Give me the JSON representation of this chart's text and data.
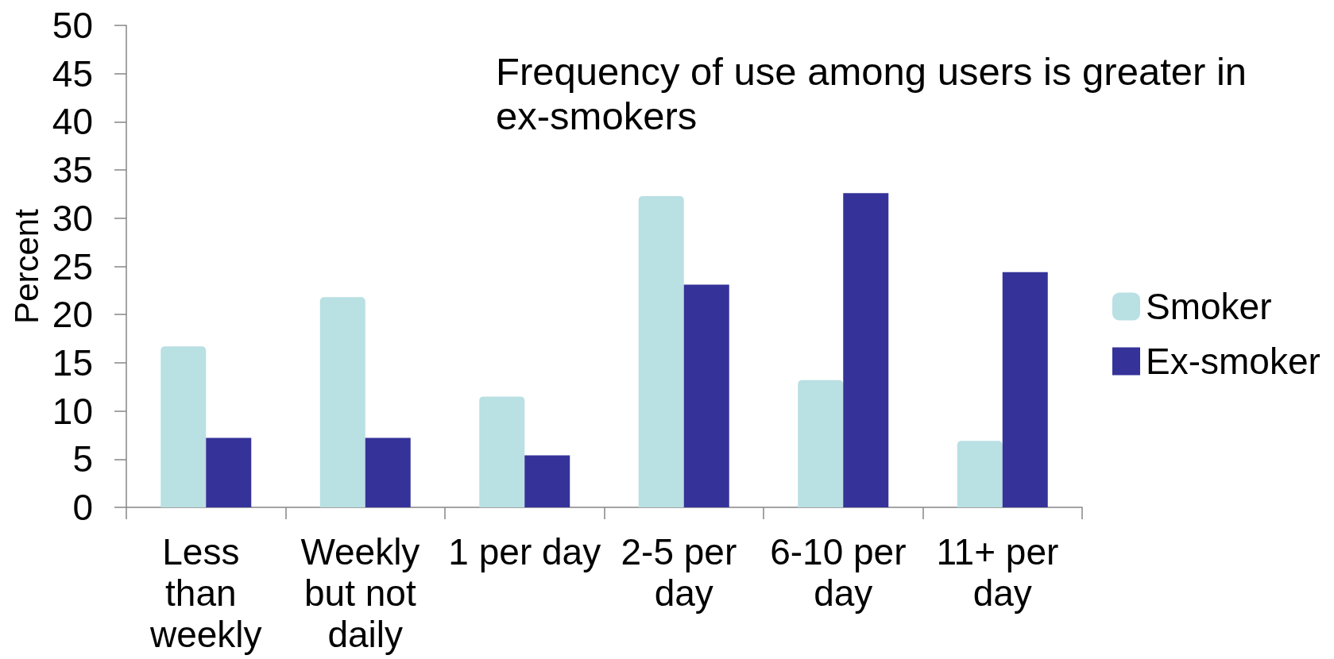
{
  "chart_data": {
    "type": "bar",
    "title": "Frequency of use among users is greater in ex-smokers",
    "ylabel": "Percent",
    "categories": [
      "Less than weekly",
      "Weekly but not daily",
      "1 per day",
      "2-5 per day",
      "6-10 per day",
      "11+ per day"
    ],
    "series": [
      {
        "name": "Smoker",
        "color": "#b9e0e3",
        "values": [
          16.7,
          21.8,
          11.5,
          32.3,
          13.2,
          6.9
        ]
      },
      {
        "name": "Ex-smoker",
        "color": "#353399",
        "values": [
          7.2,
          7.2,
          5.4,
          23.1,
          32.6,
          24.4
        ]
      }
    ],
    "ylim": [
      0,
      50
    ],
    "yticks": [
      0,
      5,
      10,
      15,
      20,
      25,
      30,
      35,
      40,
      45,
      50
    ],
    "grid": false,
    "legend": "right"
  }
}
